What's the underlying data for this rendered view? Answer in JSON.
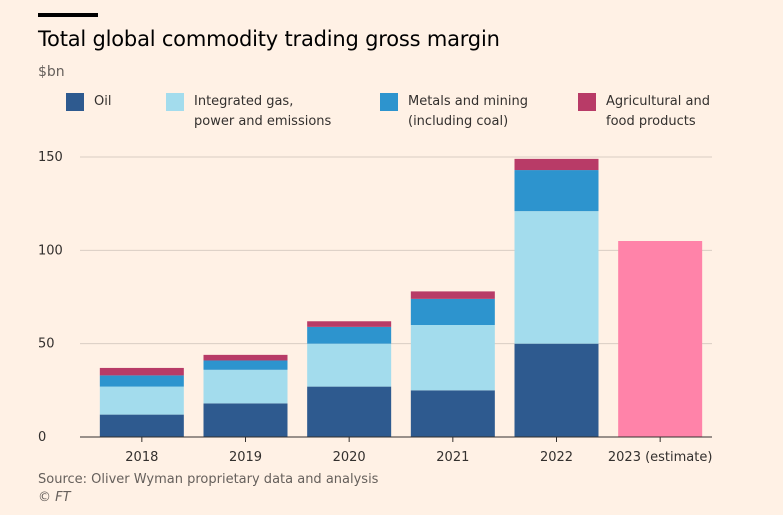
{
  "header": {
    "title": "Total global commodity trading gross margin",
    "unit": "$bn"
  },
  "legend": [
    {
      "label": "Oil",
      "color": "#2e5a8f"
    },
    {
      "label": "Integrated gas,\npower and emissions",
      "color": "#a3dced"
    },
    {
      "label": "Metals and mining\n(including coal)",
      "color": "#2d94ce"
    },
    {
      "label": "Agricultural and\nfood products",
      "color": "#b83b67"
    }
  ],
  "chart_data": {
    "type": "bar",
    "stacked": true,
    "title": "Total global commodity trading gross margin",
    "ylabel": "$bn",
    "ylim": [
      0,
      150
    ],
    "yticks": [
      0,
      50,
      100,
      150
    ],
    "categories": [
      "2018",
      "2019",
      "2020",
      "2021",
      "2022",
      "2023 (estimate)"
    ],
    "series": [
      {
        "name": "Oil",
        "color": "#2e5a8f",
        "values": [
          12,
          18,
          27,
          25,
          50,
          null
        ]
      },
      {
        "name": "Integrated gas, power and emissions",
        "color": "#a3dced",
        "values": [
          15,
          18,
          23,
          35,
          71,
          null
        ]
      },
      {
        "name": "Metals and mining (including coal)",
        "color": "#2d94ce",
        "values": [
          6,
          5,
          9,
          14,
          22,
          null
        ]
      },
      {
        "name": "Agricultural and food products",
        "color": "#b83b67",
        "values": [
          4,
          3,
          3,
          4,
          6,
          null
        ]
      }
    ],
    "totals_only": [
      {
        "category": "2023 (estimate)",
        "value": 105,
        "color": "#ff83a9"
      }
    ]
  },
  "footer": {
    "source": "Source: Oliver Wyman proprietary data and analysis",
    "copyright": "© FT"
  }
}
